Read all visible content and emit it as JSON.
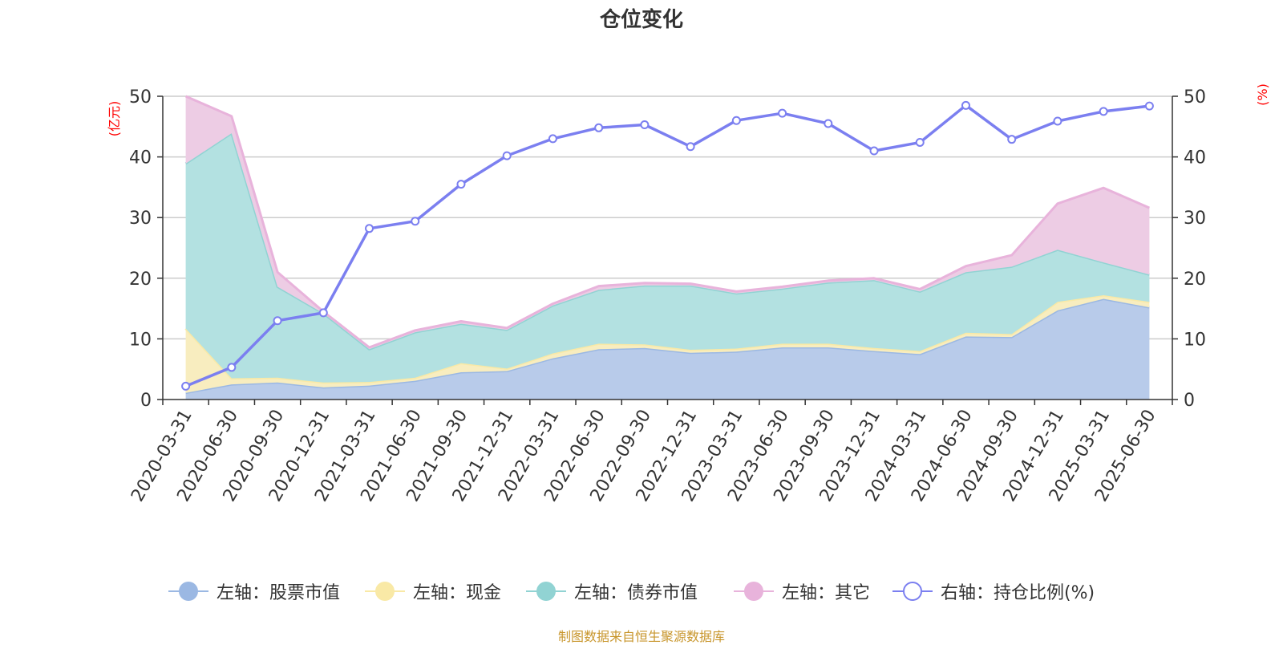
{
  "title": "仓位变化",
  "source": "制图数据来自恒生聚源数据库",
  "left_axis_unit": "(亿元)",
  "right_axis_unit": "(%)",
  "legend": [
    {
      "label": "左轴：股票市值",
      "color": "#9bb8e3",
      "icon": "filled-circle"
    },
    {
      "label": "左轴：现金",
      "color": "#f9e9a6",
      "icon": "filled-circle"
    },
    {
      "label": "左轴：债券市值",
      "color": "#91d3d3",
      "icon": "filled-circle"
    },
    {
      "label": "左轴：其它",
      "color": "#e8b3db",
      "icon": "filled-circle"
    },
    {
      "label": "右轴：持仓比例(%)",
      "color": "#7b7ff0",
      "icon": "hollow-circle"
    }
  ],
  "chart_data": {
    "type": "area",
    "stacked": true,
    "title": "仓位变化",
    "categories": [
      "2020-03-31",
      "2020-06-30",
      "2020-09-30",
      "2020-12-31",
      "2021-03-31",
      "2021-06-30",
      "2021-09-30",
      "2021-12-31",
      "2022-03-31",
      "2022-06-30",
      "2022-09-30",
      "2022-12-31",
      "2023-03-31",
      "2023-06-30",
      "2023-09-30",
      "2023-12-31",
      "2024-03-31",
      "2024-06-30",
      "2024-09-30",
      "2024-12-31",
      "2025-03-31",
      "2025-06-30"
    ],
    "y_left": {
      "label": "(亿元)",
      "min": 0,
      "max": 50,
      "ticks": [
        0,
        10,
        20,
        30,
        40,
        50
      ]
    },
    "y_right": {
      "label": "(%)",
      "min": 0,
      "max": 50,
      "ticks": [
        0,
        10,
        20,
        30,
        40,
        50
      ]
    },
    "series": [
      {
        "name": "左轴：股票市值",
        "axis": "left",
        "type": "area",
        "color": "#9bb8e3",
        "area_color": "#b8cbea",
        "values": [
          1.1,
          2.5,
          2.8,
          2.0,
          2.3,
          3.1,
          4.5,
          4.7,
          6.8,
          8.3,
          8.5,
          7.7,
          7.9,
          8.6,
          8.6,
          8.0,
          7.5,
          10.4,
          10.3,
          14.7,
          16.6,
          15.2
        ]
      },
      {
        "name": "左轴：现金",
        "axis": "left",
        "type": "area",
        "color": "#f9e9a6",
        "area_color": "#f8edbf",
        "values": [
          10.6,
          1.0,
          0.8,
          0.8,
          0.6,
          0.5,
          1.5,
          0.4,
          0.8,
          0.9,
          0.6,
          0.5,
          0.5,
          0.6,
          0.6,
          0.5,
          0.5,
          0.6,
          0.5,
          1.4,
          0.6,
          0.9
        ]
      },
      {
        "name": "左轴：债券市值",
        "axis": "left",
        "type": "area",
        "color": "#91d3d3",
        "area_color": "#b3e1e1",
        "values": [
          27.2,
          40.4,
          15.0,
          11.4,
          5.4,
          7.5,
          6.5,
          6.4,
          7.9,
          8.9,
          9.7,
          10.6,
          9.1,
          9.1,
          10.1,
          11.2,
          9.8,
          10.0,
          11.1,
          8.6,
          5.4,
          4.5
        ]
      },
      {
        "name": "左轴：其它",
        "axis": "left",
        "type": "area",
        "color": "#e8b3db",
        "area_color": "#edcce4",
        "values": [
          11.1,
          2.8,
          2.4,
          0.3,
          0.3,
          0.3,
          0.4,
          0.3,
          0.3,
          0.6,
          0.4,
          0.3,
          0.3,
          0.3,
          0.3,
          0.3,
          0.4,
          1.0,
          1.9,
          7.6,
          12.3,
          11.0
        ]
      },
      {
        "name": "右轴：持仓比例(%)",
        "axis": "right",
        "type": "line",
        "color": "#7b7ff0",
        "values": [
          2.2,
          5.3,
          13.0,
          14.3,
          28.2,
          29.4,
          35.5,
          40.2,
          43.0,
          44.8,
          45.3,
          41.7,
          46.0,
          47.2,
          45.5,
          41.0,
          42.4,
          48.5,
          42.9,
          45.9,
          47.5,
          48.4
        ]
      }
    ]
  }
}
